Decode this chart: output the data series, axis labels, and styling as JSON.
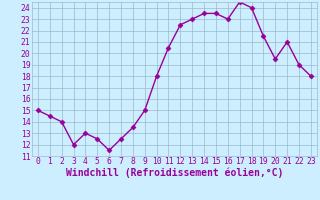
{
  "x": [
    0,
    1,
    2,
    3,
    4,
    5,
    6,
    7,
    8,
    9,
    10,
    11,
    12,
    13,
    14,
    15,
    16,
    17,
    18,
    19,
    20,
    21,
    22,
    23
  ],
  "y": [
    15.0,
    14.5,
    14.0,
    12.0,
    13.0,
    12.5,
    11.5,
    12.5,
    13.5,
    15.0,
    18.0,
    20.5,
    22.5,
    23.0,
    23.5,
    23.5,
    23.0,
    24.5,
    24.0,
    21.5,
    19.5,
    21.0,
    19.0,
    18.0
  ],
  "line_color": "#990099",
  "marker": "D",
  "marker_size": 2.5,
  "bg_color": "#cceeff",
  "grid_color": "#99bbcc",
  "xlabel": "Windchill (Refroidissement éolien,°C)",
  "xlabel_color": "#990099",
  "tick_color": "#990099",
  "ylim": [
    11,
    24.5
  ],
  "xlim": [
    -0.5,
    23.5
  ],
  "yticks": [
    11,
    12,
    13,
    14,
    15,
    16,
    17,
    18,
    19,
    20,
    21,
    22,
    23,
    24
  ],
  "xticks": [
    0,
    1,
    2,
    3,
    4,
    5,
    6,
    7,
    8,
    9,
    10,
    11,
    12,
    13,
    14,
    15,
    16,
    17,
    18,
    19,
    20,
    21,
    22,
    23
  ],
  "tick_fontsize": 5.8,
  "xlabel_fontsize": 7.0,
  "linewidth": 1.0
}
